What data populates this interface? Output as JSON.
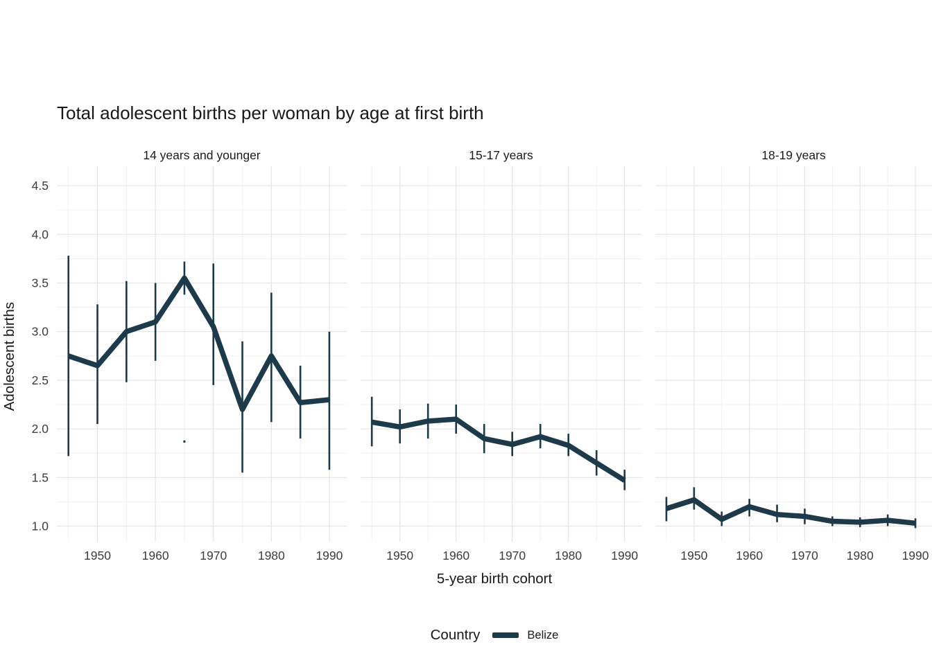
{
  "page": {
    "background": "#ffffff"
  },
  "chart_data": {
    "type": "line",
    "title": "Total adolescent births per woman by age at first birth",
    "xlabel": "5-year birth cohort",
    "ylabel": "Adolescent births",
    "legend": {
      "title": "Country",
      "entries": [
        {
          "label": "Belize",
          "color": "#1c3a49"
        }
      ],
      "position": "bottom"
    },
    "series_color": "#1c3a49",
    "grid": true,
    "x_domain": [
      1943,
      1993
    ],
    "y_domain": [
      0.84,
      4.7
    ],
    "x_ticks": [
      1950,
      1960,
      1970,
      1980,
      1990
    ],
    "x_minor": [
      1945,
      1955,
      1965,
      1975,
      1985
    ],
    "y_ticks": [
      1.0,
      1.5,
      2.0,
      2.5,
      3.0,
      3.5,
      4.0,
      4.5
    ],
    "y_minor": [
      1.25,
      1.75,
      2.25,
      2.75,
      3.25,
      3.75,
      4.25
    ],
    "facets": [
      {
        "label": "14 years and younger",
        "x": [
          1945,
          1950,
          1955,
          1960,
          1965,
          1970,
          1975,
          1980,
          1985,
          1990
        ],
        "y": [
          2.75,
          2.65,
          3.0,
          3.1,
          3.55,
          3.05,
          2.2,
          2.75,
          2.27,
          2.3
        ],
        "ymin": [
          1.72,
          2.05,
          2.48,
          2.7,
          3.38,
          2.45,
          1.55,
          2.07,
          1.9,
          1.58
        ],
        "ymax": [
          3.78,
          3.28,
          3.52,
          3.5,
          3.72,
          3.7,
          2.9,
          3.4,
          2.65,
          3.0
        ],
        "point": {
          "x": 1965,
          "y": 1.87
        }
      },
      {
        "label": "15-17 years",
        "x": [
          1945,
          1950,
          1955,
          1960,
          1965,
          1970,
          1975,
          1980,
          1985,
          1990
        ],
        "y": [
          2.07,
          2.02,
          2.08,
          2.1,
          1.9,
          1.84,
          1.92,
          1.83,
          1.65,
          1.47
        ],
        "ymin": [
          1.82,
          1.85,
          1.9,
          1.95,
          1.75,
          1.72,
          1.8,
          1.72,
          1.52,
          1.37
        ],
        "ymax": [
          2.33,
          2.2,
          2.26,
          2.25,
          2.05,
          1.97,
          2.05,
          1.95,
          1.78,
          1.58
        ]
      },
      {
        "label": "18-19 years",
        "x": [
          1945,
          1950,
          1955,
          1960,
          1965,
          1970,
          1975,
          1980,
          1985,
          1990
        ],
        "y": [
          1.18,
          1.27,
          1.07,
          1.2,
          1.12,
          1.1,
          1.05,
          1.04,
          1.06,
          1.03
        ],
        "ymin": [
          1.05,
          1.17,
          1.0,
          1.1,
          1.04,
          1.02,
          1.0,
          0.99,
          1.0,
          0.98
        ],
        "ymax": [
          1.3,
          1.4,
          1.15,
          1.28,
          1.22,
          1.18,
          1.1,
          1.09,
          1.12,
          1.08
        ]
      }
    ]
  }
}
